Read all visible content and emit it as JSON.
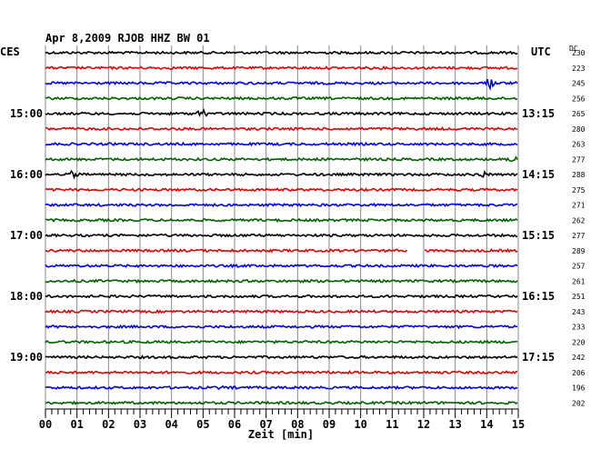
{
  "chart_data": {
    "type": "line",
    "title": "Apr 8,2009   RJOB HHZ BW 01",
    "left_axis_label": "CES",
    "right_axis_label": "UTC",
    "dc_header": "DC",
    "xlabel": "Zeit [min]",
    "x_ticks": [
      "00",
      "01",
      "02",
      "03",
      "04",
      "05",
      "06",
      "07",
      "08",
      "09",
      "10",
      "11",
      "12",
      "13",
      "14",
      "15"
    ],
    "xlim": [
      0,
      15
    ],
    "left_time_labels": [
      "15:00",
      "16:00",
      "17:00",
      "18:00",
      "19:00"
    ],
    "right_time_labels": [
      "13:15",
      "14:15",
      "15:15",
      "16:15",
      "17:15"
    ],
    "time_label_traces": [
      4,
      8,
      12,
      16,
      20
    ],
    "trace_colors": [
      "#000000",
      "#e00000",
      "#0000e0",
      "#006000"
    ],
    "dc_values": [
      "230",
      "223",
      "245",
      "256",
      "265",
      "280",
      "263",
      "277",
      "288",
      "275",
      "271",
      "262",
      "277",
      "289",
      "257",
      "261",
      "251",
      "243",
      "233",
      "220",
      "242",
      "206",
      "196",
      "202"
    ],
    "gap": {
      "trace": 13,
      "start_min": 11.5,
      "end_min": 12.0
    },
    "events": [
      {
        "trace": 2,
        "min": 14.1,
        "amp": 6
      },
      {
        "trace": 4,
        "min": 4.95,
        "amp": 4
      },
      {
        "trace": 7,
        "min": 14.8,
        "amp": 5
      },
      {
        "trace": 8,
        "min": 0.9,
        "amp": 4
      },
      {
        "trace": 8,
        "min": 13.9,
        "amp": 4
      },
      {
        "trace": 22,
        "min": 5.7,
        "amp": 4
      }
    ],
    "grid": true
  }
}
